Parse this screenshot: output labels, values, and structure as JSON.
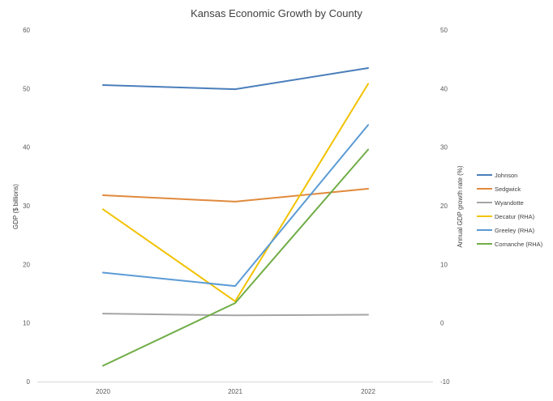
{
  "chart_data": {
    "type": "line",
    "title": "Kansas Economic Growth by County",
    "categories": [
      "2020",
      "2021",
      "2022"
    ],
    "ylabel": "GDP ($ billions)",
    "y2label": "Annual GDP growth rate (%)",
    "ylim": [
      0,
      60
    ],
    "y2lim": [
      -10,
      50
    ],
    "yticks": [
      "0",
      "10",
      "20",
      "30",
      "40",
      "50",
      "60"
    ],
    "y2ticks": [
      "-10",
      "0",
      "10",
      "20",
      "30",
      "40",
      "50"
    ],
    "grid": false,
    "legend": "right",
    "series": [
      {
        "name": "Johnson",
        "axis": "left",
        "color": "#4a7ebb",
        "values": [
          50.6,
          49.9,
          53.5
        ]
      },
      {
        "name": "Sedgwick",
        "axis": "left",
        "color": "#e08a3c",
        "values": [
          31.8,
          30.7,
          32.9
        ]
      },
      {
        "name": "Wyandotte",
        "axis": "left",
        "color": "#a5a5a5",
        "values": [
          11.6,
          11.3,
          11.4
        ]
      },
      {
        "name": "Decatur (RHA)",
        "axis": "right",
        "color": "#f2c200",
        "values": [
          19.4,
          3.7,
          40.8
        ]
      },
      {
        "name": "Greeley (RHA)",
        "axis": "right",
        "color": "#5b9bd5",
        "values": [
          8.6,
          6.3,
          33.8
        ]
      },
      {
        "name": "Comanche (RHA)",
        "axis": "right",
        "color": "#70ad47",
        "values": [
          -7.3,
          3.4,
          29.6
        ]
      }
    ]
  }
}
